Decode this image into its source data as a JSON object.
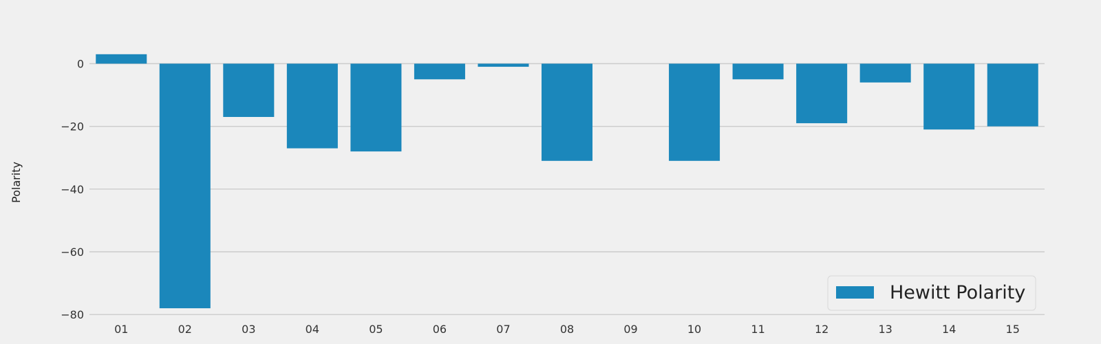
{
  "chart_data": {
    "type": "bar",
    "title": "",
    "xlabel": "",
    "ylabel": "Polarity",
    "categories": [
      "01",
      "02",
      "03",
      "04",
      "05",
      "06",
      "07",
      "08",
      "09",
      "10",
      "11",
      "12",
      "13",
      "14",
      "15"
    ],
    "series": [
      {
        "name": "Hewitt Polarity",
        "values": [
          3,
          -78,
          -17,
          -27,
          -28,
          -5,
          -1,
          -31,
          0,
          -31,
          -5,
          -19,
          -6,
          -21,
          -20
        ],
        "color": "#1b87bb"
      }
    ],
    "ylim": [
      -80,
      12
    ],
    "yticks": [
      0,
      -20,
      -40,
      -60,
      -80
    ],
    "ytick_labels": [
      "0",
      "−20",
      "−40",
      "−60",
      "−80"
    ],
    "grid": "horizontal",
    "legend_position": "bottom-right",
    "background_color": "#f0f0f0"
  }
}
